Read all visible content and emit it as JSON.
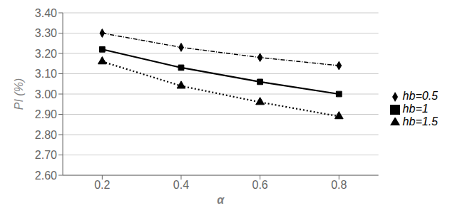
{
  "chart_data": {
    "type": "line",
    "x_label": "α",
    "y_label": "PI (%)",
    "x": [
      0.2,
      0.4,
      0.6,
      0.8
    ],
    "series": [
      {
        "name": "hb=0.5",
        "color": "#000000",
        "marker": "diamond",
        "line_style": "dashdot",
        "values": [
          3.3,
          3.23,
          3.18,
          3.14
        ]
      },
      {
        "name": "hb=1",
        "color": "#000000",
        "marker": "square",
        "line_style": "solid",
        "values": [
          3.22,
          3.13,
          3.06,
          3.0
        ]
      },
      {
        "name": "hb=1.5",
        "color": "#000000",
        "marker": "triangle",
        "line_style": "dotted",
        "values": [
          3.16,
          3.04,
          2.96,
          2.89
        ]
      }
    ],
    "xlim": [
      0.1,
      0.9
    ],
    "xticks": [
      0.2,
      0.4,
      0.6,
      0.8
    ],
    "ylim": [
      2.6,
      3.4
    ],
    "yticks": [
      {
        "value": 2.6,
        "label": "2.60"
      },
      {
        "value": 2.7,
        "label": "2.70"
      },
      {
        "value": 2.8,
        "label": "2.80"
      },
      {
        "value": 2.9,
        "label": "2.90"
      },
      {
        "value": 3.0,
        "label": "3.00"
      },
      {
        "value": 3.1,
        "label": "3.10"
      },
      {
        "value": 3.2,
        "label": "3.20"
      },
      {
        "value": 3.3,
        "label": "3.30"
      },
      {
        "value": 3.4,
        "label": "3.40"
      }
    ],
    "grid": true,
    "legend": "right"
  }
}
